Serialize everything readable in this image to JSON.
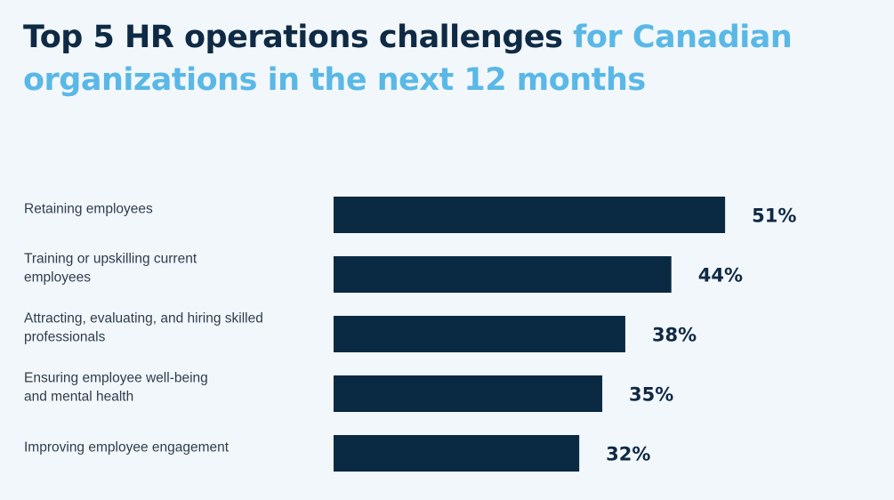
{
  "title": {
    "dark": "Top 5 HR operations challenges",
    "accent": "for Canadian organizations in the next 12 months"
  },
  "colors": {
    "bar": "#0a2942",
    "title_dark": "#0f2a44",
    "title_accent": "#5ab8e6",
    "background": "#f2f7fc"
  },
  "chart_data": {
    "type": "bar",
    "orientation": "horizontal",
    "categories": [
      "Retaining employees",
      "Training or upskilling current employees",
      "Attracting, evaluating, and hiring skilled professionals",
      "Ensuring employee well-being and mental health",
      "Improving employee engagement"
    ],
    "category_lines": [
      [
        "Retaining employees"
      ],
      [
        "Training or upskilling current",
        "employees"
      ],
      [
        "Attracting, evaluating, and hiring skilled",
        "professionals"
      ],
      [
        "Ensuring employee well-being",
        "and mental health"
      ],
      [
        "Improving employee engagement"
      ]
    ],
    "values": [
      51,
      44,
      38,
      35,
      32
    ],
    "value_labels": [
      "51%",
      "44%",
      "38%",
      "35%",
      "32%"
    ],
    "unit": "%",
    "grid": false,
    "legend": "none"
  }
}
